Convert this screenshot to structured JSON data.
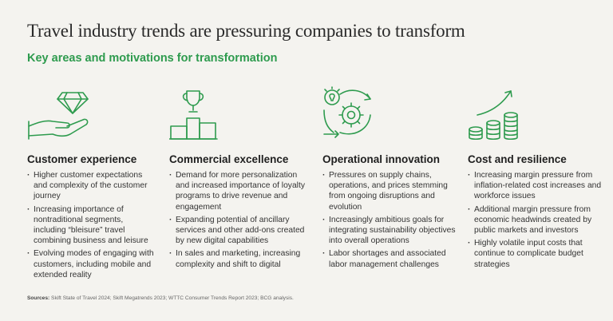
{
  "title": "Travel industry trends are pressuring companies to transform",
  "subtitle": "Key areas and motivations for transformation",
  "accent_color": "#2e9b4e",
  "columns": [
    {
      "icon": "hand-diamond-icon",
      "heading": "Customer experience",
      "bullets": [
        "Higher customer expectations and complexity of the customer journey",
        "Increasing importance of nontraditional segments, including “bleisure” travel combining business and leisure",
        "Evolving modes of engaging with customers, including mobile and extended reality"
      ]
    },
    {
      "icon": "trophy-podium-icon",
      "heading": "Commercial excellence",
      "bullets": [
        "Demand for more personalization and increased importance of loyalty programs to drive revenue and engagement",
        "Expanding potential of ancillary services and other add-ons created by new digital capabilities",
        "In sales and marketing, increasing complexity and shift to digital"
      ]
    },
    {
      "icon": "lightbulb-gear-cycle-icon",
      "heading": "Operational innovation",
      "bullets": [
        "Pressures on supply chains, operations, and prices stemming from ongoing disruptions and evolution",
        "Increasingly ambitious goals for integrating sustainability objectives into overall operations",
        "Labor shortages and associated labor management challenges"
      ]
    },
    {
      "icon": "coins-growth-icon",
      "heading": "Cost and resilience",
      "bullets": [
        "Increasing margin pressure from inflation-related cost increases and workforce issues",
        "Additional margin pressure from economic headwinds created by public markets and investors",
        "Highly volatile input costs that continue to complicate budget strategies"
      ]
    }
  ],
  "sources": {
    "label": "Sources:",
    "text": " Skift State of Travel 2024; Skift Megatrends 2023; WTTC Consumer Trends Report 2023; BCG analysis."
  }
}
